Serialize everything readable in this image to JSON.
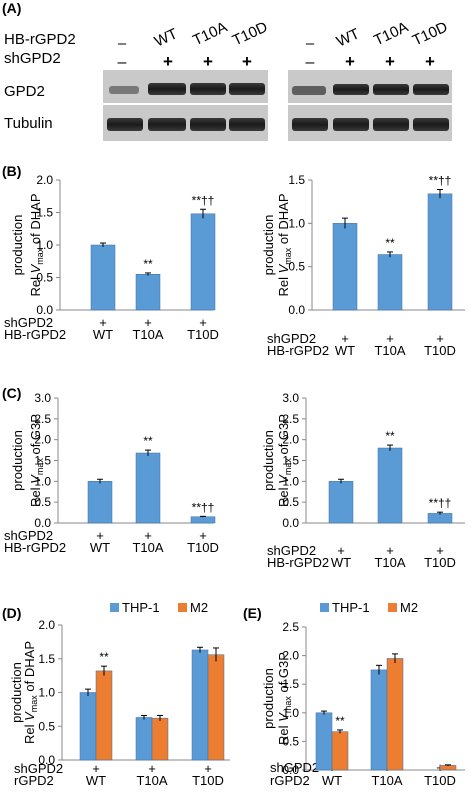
{
  "panel_labels": {
    "A": "(A)",
    "B": "(B)",
    "C": "(C)",
    "D": "(D)",
    "E": "(E)"
  },
  "blot": {
    "row_labels": {
      "hb": "HB-rGPD2",
      "sh": "shGPD2"
    },
    "lanes": [
      {
        "hb": "–",
        "sh": "–"
      },
      {
        "hb": "WT",
        "sh": "+"
      },
      {
        "hb": "T10A",
        "sh": "+"
      },
      {
        "hb": "T10D",
        "sh": "+"
      }
    ],
    "band_labels": {
      "gpd2": "GPD2",
      "tubulin": "Tubulin"
    }
  },
  "colors": {
    "blue": "#5b9bd5",
    "orange": "#ed7d31",
    "axis": "#888888"
  },
  "significance_marks": {
    "up_one": "**",
    "up_two": "**††"
  },
  "legend": {
    "series1": "THP-1",
    "series2": "M2"
  },
  "chart_data": [
    {
      "id": "B-left",
      "type": "bar",
      "ylabel": "Rel Vmax of DHAP production",
      "ylim": [
        0,
        2.0
      ],
      "ticks": [
        "0.0",
        "0.5",
        "1.0",
        "1.5",
        "2.0"
      ],
      "row_labels": [
        "shGPD2",
        "HB-rGPD2"
      ],
      "categories": [
        {
          "sh": "+",
          "hb": "WT"
        },
        {
          "sh": "+",
          "hb": "T10A"
        },
        {
          "sh": "+",
          "hb": "T10D"
        }
      ],
      "series": [
        {
          "values": [
            1.0,
            0.55,
            1.48
          ],
          "errors": [
            0.03,
            0.02,
            0.07
          ],
          "annotations": [
            "",
            "**",
            "**††"
          ]
        }
      ]
    },
    {
      "id": "B-right",
      "type": "bar",
      "ylabel": "Rel Vmax of DHAP production",
      "ylim": [
        0,
        1.5
      ],
      "ticks": [
        "0.0",
        "0.5",
        "1.0",
        "1.5"
      ],
      "row_labels": [
        "shGPD2",
        "HB-rGPD2"
      ],
      "categories": [
        {
          "sh": "+",
          "hb": "WT"
        },
        {
          "sh": "+",
          "hb": "T10A"
        },
        {
          "sh": "+",
          "hb": "T10D"
        }
      ],
      "series": [
        {
          "values": [
            1.0,
            0.64,
            1.34
          ],
          "errors": [
            0.06,
            0.03,
            0.05
          ],
          "annotations": [
            "",
            "**",
            "**††"
          ]
        }
      ]
    },
    {
      "id": "C-left",
      "type": "bar",
      "ylabel": "Rel Vmax of G3P production",
      "ylim": [
        0,
        3.0
      ],
      "ticks": [
        "0.0",
        "0.5",
        "1.0",
        "1.5",
        "2.0",
        "2.5",
        "3.0"
      ],
      "row_labels": [
        "shGPD2",
        "HB-rGPD2"
      ],
      "categories": [
        {
          "sh": "+",
          "hb": "WT"
        },
        {
          "sh": "+",
          "hb": "T10A"
        },
        {
          "sh": "+",
          "hb": "T10D"
        }
      ],
      "series": [
        {
          "values": [
            1.0,
            1.68,
            0.15
          ],
          "errors": [
            0.05,
            0.07,
            0.01
          ],
          "annotations": [
            "",
            "**",
            "**††"
          ]
        }
      ]
    },
    {
      "id": "C-right",
      "type": "bar",
      "ylabel": "Rel Vmax of G3P production",
      "ylim": [
        0,
        3.0
      ],
      "ticks": [
        "0.0",
        "0.5",
        "1.0",
        "1.5",
        "2.0",
        "2.5",
        "3.0"
      ],
      "row_labels": [
        "shGPD2",
        "HB-rGPD2"
      ],
      "categories": [
        {
          "sh": "+",
          "hb": "WT"
        },
        {
          "sh": "+",
          "hb": "T10A"
        },
        {
          "sh": "+",
          "hb": "T10D"
        }
      ],
      "series": [
        {
          "values": [
            1.0,
            1.8,
            0.23
          ],
          "errors": [
            0.05,
            0.07,
            0.03
          ],
          "annotations": [
            "",
            "**",
            "**††"
          ]
        }
      ]
    },
    {
      "id": "D",
      "type": "bar",
      "ylabel": "Rel Vmax of DHAP production",
      "ylim": [
        0,
        2.0
      ],
      "ticks": [
        "0.0",
        "0.5",
        "1.0",
        "1.5",
        "2.0"
      ],
      "row_labels": [
        "shGPD2",
        "rGPD2"
      ],
      "categories": [
        {
          "sh": "+",
          "hb": "WT"
        },
        {
          "sh": "+",
          "hb": "T10A"
        },
        {
          "sh": "+",
          "hb": "T10D"
        }
      ],
      "series": [
        {
          "name": "THP-1",
          "values": [
            1.0,
            0.63,
            1.63
          ],
          "errors": [
            0.05,
            0.03,
            0.04
          ],
          "annotations": [
            "",
            "",
            ""
          ]
        },
        {
          "name": "M2",
          "values": [
            1.32,
            0.62,
            1.56
          ],
          "errors": [
            0.07,
            0.04,
            0.1
          ],
          "annotations": [
            "**",
            "",
            ""
          ]
        }
      ]
    },
    {
      "id": "E",
      "type": "bar",
      "ylabel": "Rel Vmax of G3P production",
      "ylim": [
        0,
        2.5
      ],
      "ticks": [
        "0.0",
        "0.5",
        "1.0",
        "1.5",
        "2.0",
        "2.5"
      ],
      "row_labels": [
        "shGPD2",
        "rGPD2"
      ],
      "categories": [
        {
          "sh": "+",
          "hb": "WT"
        },
        {
          "sh": "+",
          "hb": "T10A"
        },
        {
          "sh": "+",
          "hb": "T10D"
        }
      ],
      "series": [
        {
          "name": "THP-1",
          "values": [
            1.0,
            1.75,
            0.0
          ],
          "errors": [
            0.03,
            0.08,
            0.0
          ],
          "annotations": [
            "",
            "",
            ""
          ]
        },
        {
          "name": "M2",
          "values": [
            0.67,
            1.95,
            0.08
          ],
          "errors": [
            0.03,
            0.08,
            0.01
          ],
          "annotations": [
            "**",
            "",
            ""
          ]
        }
      ]
    }
  ]
}
